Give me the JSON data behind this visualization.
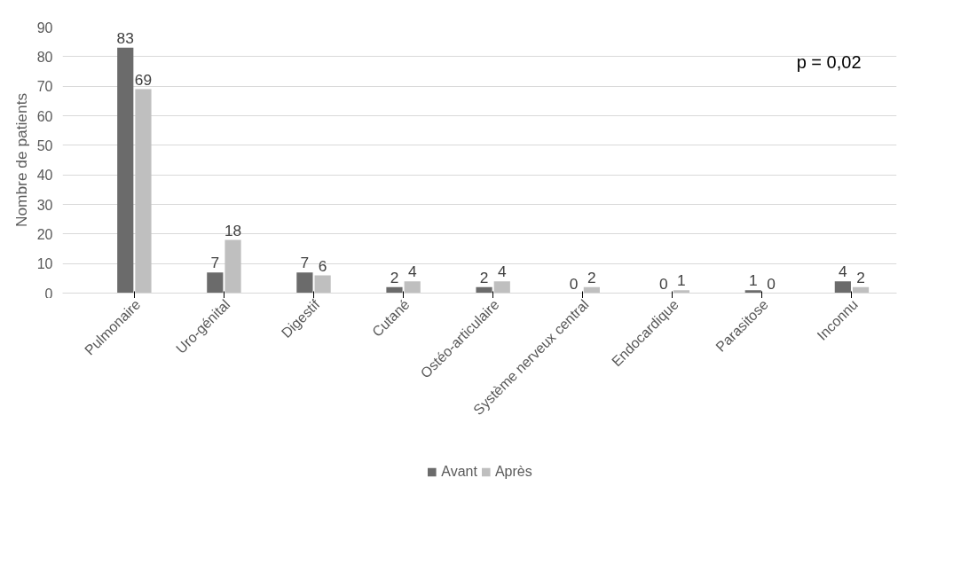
{
  "chart_data": {
    "type": "bar",
    "ylabel": "Nombre de patients",
    "categories": [
      "Pulmonaire",
      "Uro-génital",
      "Digestif",
      "Cutané",
      "Ostéo-articulaire",
      "Système nerveux central",
      "Endocardique",
      "Parasitose",
      "Inconnu"
    ],
    "series": [
      {
        "name": "Avant",
        "color": "#6b6b6b",
        "values": [
          83,
          7,
          7,
          2,
          2,
          0,
          0,
          1,
          4
        ]
      },
      {
        "name": "Après",
        "color": "#bfbfbf",
        "values": [
          69,
          18,
          6,
          4,
          4,
          2,
          1,
          0,
          2
        ]
      }
    ],
    "ylim": [
      0,
      90
    ],
    "yticks": [
      0,
      10,
      20,
      30,
      40,
      50,
      60,
      70,
      80,
      90
    ],
    "grid": "y",
    "legend": "bottom",
    "data_labels": true,
    "annotations": [
      "p = 0,02"
    ]
  }
}
